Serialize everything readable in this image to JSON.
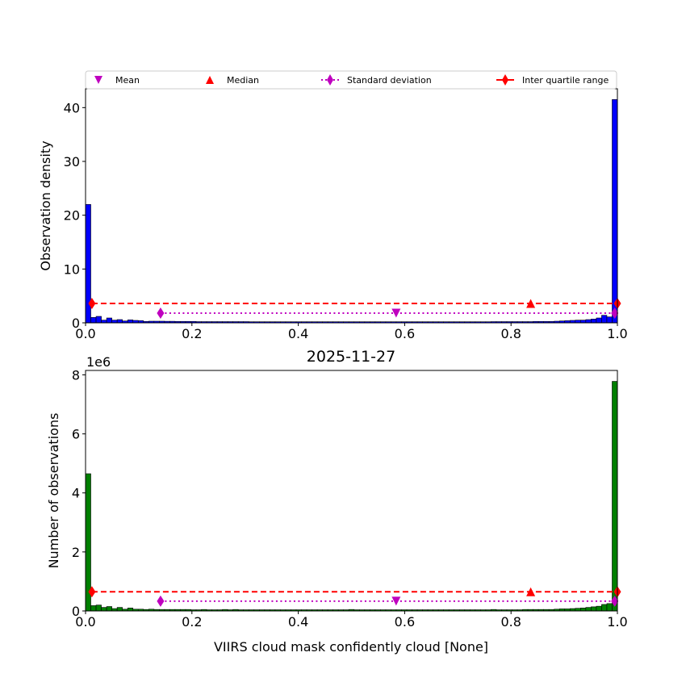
{
  "figure": {
    "title": "2025-11-27"
  },
  "legend": {
    "placement": "top",
    "entries": [
      {
        "label": "Mean",
        "marker": "triangle-down",
        "color": "#bf00bf"
      },
      {
        "label": "Median",
        "marker": "triangle-up",
        "color": "#ff0000"
      },
      {
        "label": "Standard deviation",
        "marker": "thin-diamond",
        "line": "dotted",
        "color": "#bf00bf"
      },
      {
        "label": "Inter quartile range",
        "marker": "thin-diamond",
        "line": "solid",
        "color": "#ff0000"
      }
    ]
  },
  "chart_data": [
    {
      "type": "bar",
      "name": "density-histogram",
      "title": "",
      "xlabel": "",
      "ylabel": "Observation density",
      "xlim": [
        0,
        1
      ],
      "ylim": [
        0,
        43.5
      ],
      "xticks": [
        "0.0",
        "0.2",
        "0.4",
        "0.6",
        "0.8",
        "1.0"
      ],
      "yticks": [
        0,
        10,
        20,
        30,
        40
      ],
      "bin_width": 0.01,
      "bar_color": "#0000ff",
      "values": [
        22.0,
        1.0,
        1.2,
        0.5,
        0.9,
        0.5,
        0.6,
        0.35,
        0.55,
        0.45,
        0.4,
        0.25,
        0.3,
        0.3,
        0.3,
        0.28,
        0.28,
        0.25,
        0.25,
        0.25,
        0.25,
        0.22,
        0.22,
        0.22,
        0.22,
        0.22,
        0.22,
        0.22,
        0.22,
        0.22,
        0.22,
        0.2,
        0.2,
        0.2,
        0.2,
        0.2,
        0.2,
        0.2,
        0.2,
        0.2,
        0.2,
        0.2,
        0.2,
        0.2,
        0.2,
        0.2,
        0.2,
        0.2,
        0.2,
        0.2,
        0.2,
        0.2,
        0.2,
        0.2,
        0.2,
        0.2,
        0.2,
        0.2,
        0.2,
        0.2,
        0.2,
        0.2,
        0.2,
        0.2,
        0.2,
        0.2,
        0.2,
        0.2,
        0.2,
        0.2,
        0.2,
        0.2,
        0.2,
        0.2,
        0.2,
        0.2,
        0.2,
        0.22,
        0.22,
        0.22,
        0.22,
        0.22,
        0.22,
        0.22,
        0.22,
        0.25,
        0.25,
        0.25,
        0.25,
        0.3,
        0.35,
        0.4,
        0.45,
        0.5,
        0.5,
        0.6,
        0.7,
        0.9,
        1.4,
        1.1,
        41.5
      ],
      "stats": {
        "mean": {
          "x": 0.584,
          "y": 1.8
        },
        "median": {
          "x": 0.837,
          "y": 3.6
        },
        "std": {
          "x": [
            0.141,
            0.995
          ],
          "y": 1.8
        },
        "iqr": {
          "x": [
            0.012,
            1.0
          ],
          "y": 3.6
        }
      }
    },
    {
      "type": "bar",
      "name": "count-histogram",
      "title": "2025-11-27",
      "xlabel": "VIIRS cloud mask confidently cloud [None]",
      "ylabel": "Number of observations",
      "offset_label": "1e6",
      "scale": 1000000,
      "xlim": [
        0,
        1
      ],
      "ylim": [
        0,
        8.15
      ],
      "xticks": [
        "0.0",
        "0.2",
        "0.4",
        "0.6",
        "0.8",
        "1.0"
      ],
      "yticks": [
        0,
        2,
        4,
        6,
        8
      ],
      "bin_width": 0.01,
      "bar_color": "#007f00",
      "values": [
        4.65,
        0.18,
        0.2,
        0.12,
        0.15,
        0.08,
        0.12,
        0.06,
        0.1,
        0.06,
        0.06,
        0.05,
        0.06,
        0.05,
        0.05,
        0.05,
        0.05,
        0.05,
        0.05,
        0.05,
        0.04,
        0.04,
        0.05,
        0.04,
        0.04,
        0.04,
        0.05,
        0.04,
        0.05,
        0.04,
        0.04,
        0.04,
        0.04,
        0.04,
        0.04,
        0.04,
        0.04,
        0.04,
        0.04,
        0.04,
        0.04,
        0.04,
        0.04,
        0.04,
        0.04,
        0.04,
        0.04,
        0.04,
        0.04,
        0.04,
        0.05,
        0.04,
        0.04,
        0.04,
        0.04,
        0.04,
        0.04,
        0.04,
        0.04,
        0.04,
        0.04,
        0.04,
        0.04,
        0.04,
        0.04,
        0.04,
        0.04,
        0.04,
        0.04,
        0.04,
        0.04,
        0.04,
        0.04,
        0.04,
        0.04,
        0.04,
        0.04,
        0.05,
        0.04,
        0.04,
        0.04,
        0.04,
        0.04,
        0.05,
        0.05,
        0.05,
        0.05,
        0.05,
        0.05,
        0.06,
        0.07,
        0.07,
        0.08,
        0.09,
        0.1,
        0.12,
        0.14,
        0.16,
        0.22,
        0.25,
        7.78
      ],
      "stats": {
        "mean": {
          "x": 0.584,
          "y": 0.33
        },
        "median": {
          "x": 0.837,
          "y": 0.65
        },
        "std": {
          "x": [
            0.141,
            0.995
          ],
          "y": 0.33
        },
        "iqr": {
          "x": [
            0.012,
            1.0
          ],
          "y": 0.65
        }
      }
    }
  ]
}
